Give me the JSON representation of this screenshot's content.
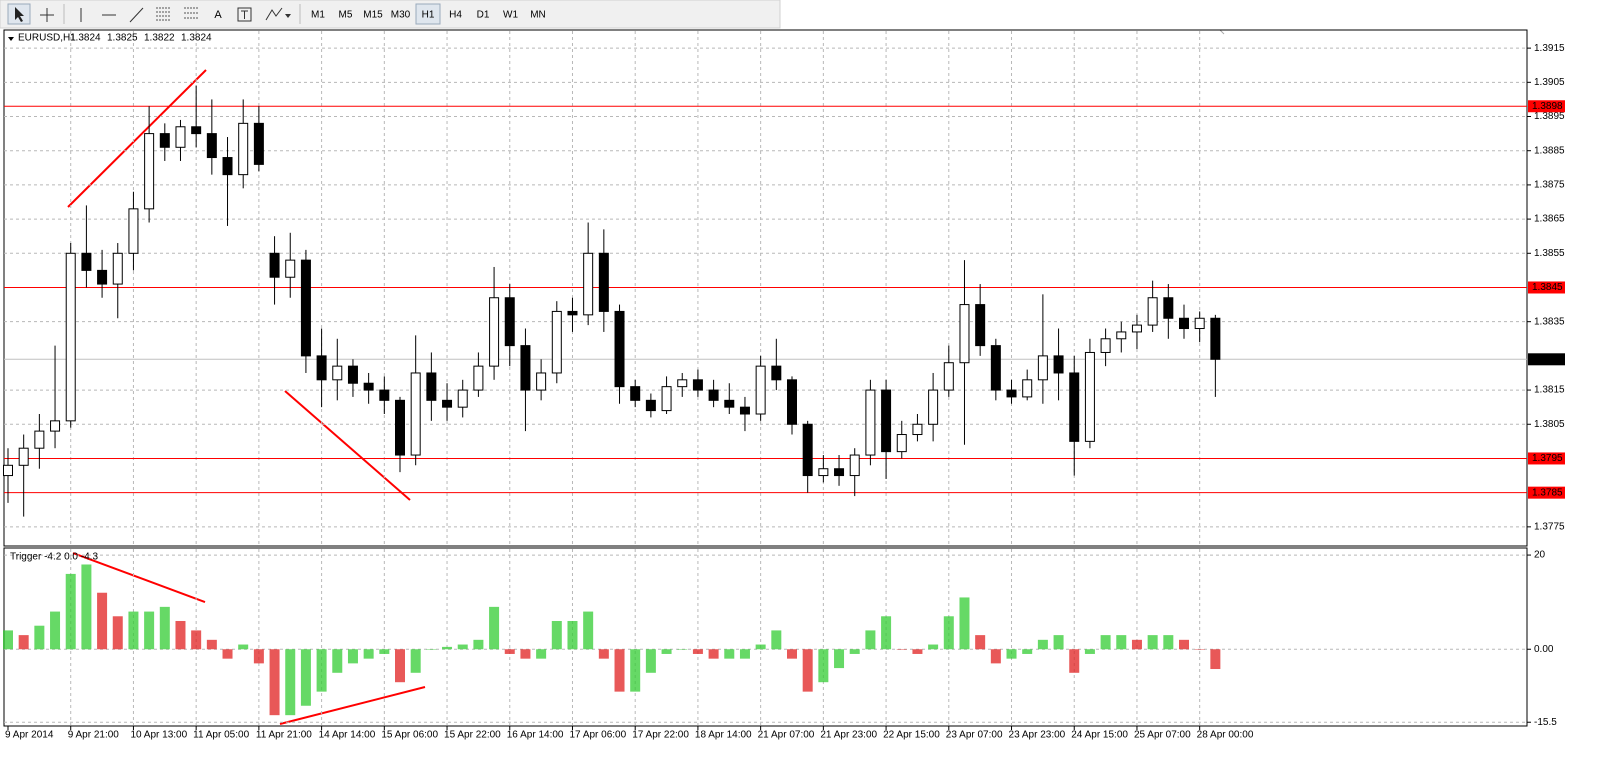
{
  "toolbar": {
    "text_tool": "A",
    "timeframes": [
      "M1",
      "M5",
      "M15",
      "M30",
      "H1",
      "H4",
      "D1",
      "W1",
      "MN"
    ],
    "active": 4
  },
  "chart_data": [
    {
      "type": "candlestick",
      "title": "EURUSD,H1",
      "quote": [
        1.3824,
        1.3825,
        1.3822,
        1.3824
      ],
      "categories": [
        "9 Apr 2014",
        null,
        null,
        null,
        "9 Apr 21:00",
        null,
        null,
        null,
        "10 Apr 13:00",
        null,
        null,
        null,
        "11 Apr 05:00",
        null,
        null,
        null,
        "11 Apr 21:00",
        null,
        null,
        null,
        "14 Apr 14:00",
        null,
        null,
        null,
        "15 Apr 06:00",
        null,
        null,
        null,
        "15 Apr 22:00",
        null,
        null,
        null,
        "16 Apr 14:00",
        null,
        null,
        null,
        "17 Apr 06:00",
        null,
        null,
        null,
        "17 Apr 22:00",
        null,
        null,
        null,
        "18 Apr 14:00",
        null,
        null,
        null,
        "21 Apr 07:00",
        null,
        null,
        null,
        "21 Apr 23:00",
        null,
        null,
        null,
        "22 Apr 15:00",
        null,
        null,
        null,
        "23 Apr 07:00",
        null,
        null,
        null,
        "23 Apr 23:00",
        null,
        null,
        null,
        "24 Apr 15:00",
        null,
        null,
        null,
        "25 Apr 07:00",
        null,
        null,
        null,
        "28 Apr 00:00",
        null
      ],
      "open": [
        1.379,
        1.3793,
        1.3798,
        1.3803,
        1.3806,
        1.3855,
        1.385,
        1.3846,
        1.3855,
        1.3868,
        1.389,
        1.3886,
        1.3892,
        1.389,
        1.3883,
        1.3878,
        1.3893,
        1.3855,
        1.3848,
        1.3853,
        1.3825,
        1.3818,
        1.3822,
        1.3817,
        1.3815,
        1.3812,
        1.3796,
        1.382,
        1.3812,
        1.381,
        1.3815,
        1.3822,
        1.3842,
        1.3828,
        1.3815,
        1.382,
        1.3838,
        1.3837,
        1.3855,
        1.3838,
        1.3816,
        1.3812,
        1.3809,
        1.3816,
        1.3818,
        1.3815,
        1.3812,
        1.381,
        1.3808,
        1.3822,
        1.3818,
        1.3805,
        1.379,
        1.3792,
        1.379,
        1.3796,
        1.3815,
        1.3797,
        1.3802,
        1.3805,
        1.3815,
        1.3823,
        1.384,
        1.3828,
        1.3815,
        1.3813,
        1.3818,
        1.3825,
        1.382,
        1.38,
        1.3826,
        1.383,
        1.3832,
        1.3834,
        1.3842,
        1.3836,
        1.3833,
        1.3836
      ],
      "high": [
        1.3798,
        1.3802,
        1.3808,
        1.3828,
        1.3858,
        1.3869,
        1.3856,
        1.3858,
        1.3873,
        1.3898,
        1.3893,
        1.3894,
        1.3904,
        1.39,
        1.3889,
        1.39,
        1.3898,
        1.386,
        1.3861,
        1.3856,
        1.3833,
        1.383,
        1.3824,
        1.382,
        1.3819,
        1.3813,
        1.3831,
        1.3826,
        1.3817,
        1.3818,
        1.3826,
        1.3851,
        1.3846,
        1.3833,
        1.3824,
        1.3841,
        1.3842,
        1.3864,
        1.3862,
        1.384,
        1.3818,
        1.3814,
        1.3819,
        1.382,
        1.3821,
        1.3818,
        1.3817,
        1.3813,
        1.3825,
        1.383,
        1.3819,
        1.3806,
        1.3796,
        1.3796,
        1.3798,
        1.3818,
        1.3818,
        1.3806,
        1.3808,
        1.382,
        1.3828,
        1.3853,
        1.3846,
        1.383,
        1.3818,
        1.3821,
        1.3843,
        1.3833,
        1.3825,
        1.383,
        1.3833,
        1.3835,
        1.3837,
        1.3847,
        1.3846,
        1.384,
        1.3838,
        1.3837
      ],
      "low": [
        1.3782,
        1.3778,
        1.3792,
        1.3798,
        1.3804,
        1.3845,
        1.3842,
        1.3836,
        1.385,
        1.3864,
        1.3882,
        1.3882,
        1.3886,
        1.3878,
        1.3863,
        1.3874,
        1.3879,
        1.384,
        1.3842,
        1.382,
        1.381,
        1.3812,
        1.3813,
        1.3811,
        1.3808,
        1.3791,
        1.3793,
        1.3806,
        1.3806,
        1.3807,
        1.3813,
        1.3818,
        1.3822,
        1.3803,
        1.3812,
        1.3817,
        1.3832,
        1.3834,
        1.3832,
        1.3811,
        1.381,
        1.3807,
        1.3808,
        1.3813,
        1.3813,
        1.381,
        1.3808,
        1.3803,
        1.3806,
        1.3815,
        1.3802,
        1.3785,
        1.3788,
        1.3787,
        1.3784,
        1.3793,
        1.3789,
        1.3795,
        1.38,
        1.38,
        1.3813,
        1.3799,
        1.3825,
        1.3812,
        1.3811,
        1.3812,
        1.3811,
        1.3812,
        1.379,
        1.3798,
        1.3822,
        1.3826,
        1.3827,
        1.3832,
        1.383,
        1.383,
        1.3829,
        1.3813
      ],
      "close": [
        1.3793,
        1.3798,
        1.3803,
        1.3806,
        1.3855,
        1.385,
        1.3846,
        1.3855,
        1.3868,
        1.389,
        1.3886,
        1.3892,
        1.389,
        1.3883,
        1.3878,
        1.3893,
        1.3881,
        1.3848,
        1.3853,
        1.3825,
        1.3818,
        1.3822,
        1.3817,
        1.3815,
        1.3812,
        1.3796,
        1.382,
        1.3812,
        1.381,
        1.3815,
        1.3822,
        1.3842,
        1.3828,
        1.3815,
        1.382,
        1.3838,
        1.3837,
        1.3855,
        1.3838,
        1.3816,
        1.3812,
        1.3809,
        1.3816,
        1.3818,
        1.3815,
        1.3812,
        1.381,
        1.3808,
        1.3822,
        1.3818,
        1.3805,
        1.379,
        1.3792,
        1.379,
        1.3796,
        1.3815,
        1.3797,
        1.3802,
        1.3805,
        1.3815,
        1.3823,
        1.384,
        1.3828,
        1.3815,
        1.3813,
        1.3818,
        1.3825,
        1.382,
        1.38,
        1.3826,
        1.383,
        1.3832,
        1.3834,
        1.3842,
        1.3836,
        1.3833,
        1.3836,
        1.3824
      ],
      "up_color": "#ffffff",
      "down_color": "#000000",
      "ylim": [
        1.37694,
        1.39203
      ],
      "yticks": [
        1.3775,
        1.3805,
        1.3815,
        1.3835,
        1.3855,
        1.3865,
        1.3875,
        1.3885,
        1.3895,
        1.3905,
        1.3915
      ],
      "levels": [
        1.3898,
        1.3845,
        1.3795,
        1.3785
      ],
      "level_color": "#ff0000",
      "current": 1.3824,
      "grid": true
    },
    {
      "type": "histogram",
      "title": "Trigger -4.2 0.0 -4.3",
      "values": [
        4,
        3,
        5,
        8,
        16,
        18,
        12,
        7,
        8,
        8,
        9,
        6,
        4,
        2,
        -2,
        1,
        -3,
        -14,
        -14,
        -12,
        -9,
        -5,
        -3,
        -2,
        -1,
        -7,
        -5,
        0,
        0.5,
        1,
        2,
        9,
        -1,
        -2,
        -2,
        6,
        6,
        8,
        -2,
        -9,
        -9,
        -5,
        -1,
        0,
        -1,
        -2,
        -2,
        -2,
        1,
        4,
        -2,
        -9,
        -7,
        -4,
        -1,
        4,
        7,
        0,
        -1,
        1,
        7,
        11,
        3,
        -3,
        -2,
        -1,
        2,
        3,
        -5,
        -1,
        3,
        3,
        2,
        3,
        3,
        2,
        0,
        -4.2
      ],
      "colors": {
        "rising": "#33cc33",
        "falling": "#e02020"
      },
      "ylim": [
        -16.3,
        21.5
      ],
      "yticks": [
        {
          "value": 20,
          "label": "20"
        },
        {
          "value": 0,
          "label": "0.00"
        },
        -15.5
      ],
      "grid": true
    }
  ]
}
